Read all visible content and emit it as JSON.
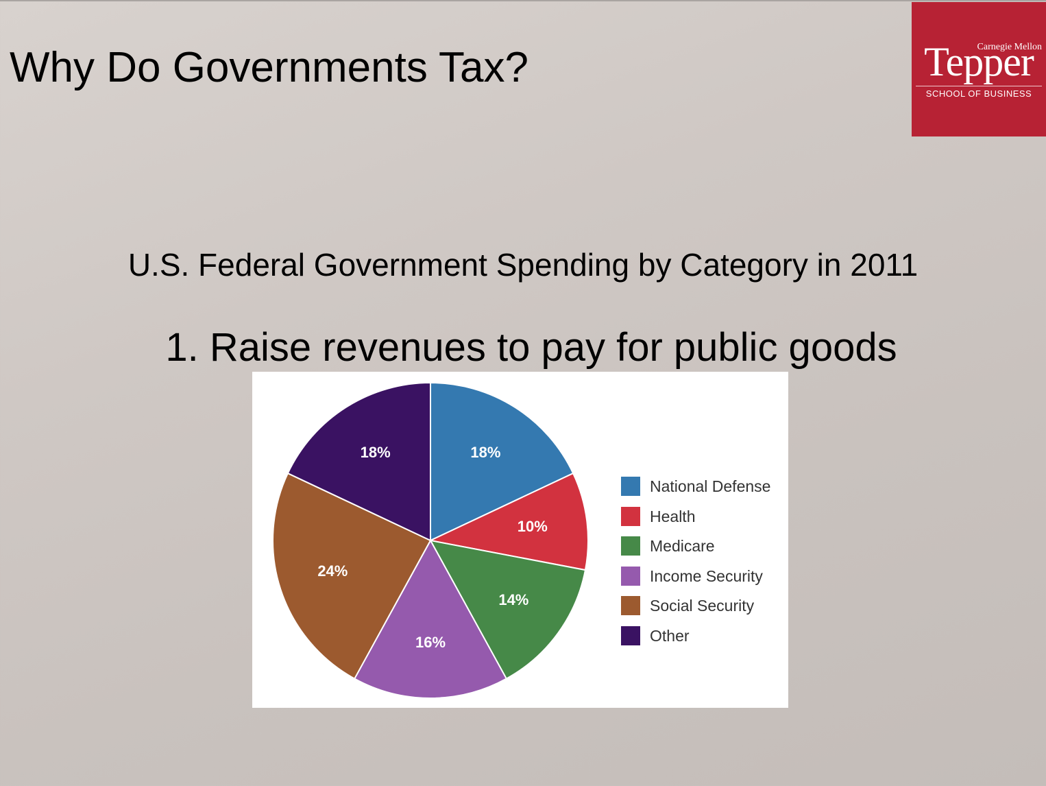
{
  "slide": {
    "title": "Why Do Governments Tax?",
    "bullet": "1. Raise revenues to pay for public goods"
  },
  "logo": {
    "line1": "Carnegie Mellon",
    "wordmark": "Tepper",
    "subline": "SCHOOL OF BUSINESS",
    "color": "#b72234"
  },
  "chart_data": {
    "type": "pie",
    "title": "U.S. Federal Government Spending by Category in 2011",
    "legend_position": "right",
    "start": "top, clockwise",
    "slices": [
      {
        "label": "National Defense",
        "value": 18,
        "display": "18%",
        "color": "#3479b0"
      },
      {
        "label": "Health",
        "value": 10,
        "display": "10%",
        "color": "#d2323f"
      },
      {
        "label": "Medicare",
        "value": 14,
        "display": "14%",
        "color": "#468948"
      },
      {
        "label": "Income Security",
        "value": 16,
        "display": "16%",
        "color": "#955aad"
      },
      {
        "label": "Social Security",
        "value": 24,
        "display": "24%",
        "color": "#9c5a2f"
      },
      {
        "label": "Other",
        "value": 18,
        "display": "18%",
        "color": "#3a1262"
      }
    ]
  }
}
